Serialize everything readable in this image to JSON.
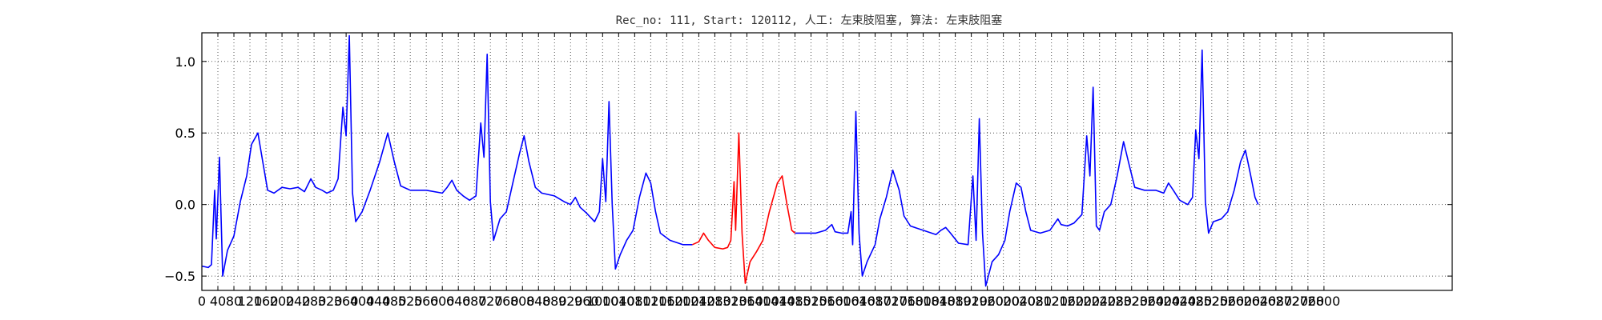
{
  "chart_data": {
    "type": "line",
    "title": "Rec_no: 111, Start: 120112, 人工: 左束肢阻塞, 算法: 左束肢阻塞",
    "xlabel": "",
    "ylabel": "",
    "xlim": [
      0,
      1560
    ],
    "ylim": [
      -0.6,
      1.2
    ],
    "grid": true,
    "ytick_values": [
      -0.5,
      0.0,
      0.5,
      1.0
    ],
    "ytick_labels": [
      "−0.5",
      "0.0",
      "0.5",
      "1.0"
    ],
    "xtick_values": [
      0,
      20,
      40,
      60,
      80,
      100,
      120,
      140,
      160,
      180,
      200,
      220,
      240,
      260,
      280,
      300,
      320,
      340,
      360,
      380,
      400,
      420,
      440,
      460,
      480,
      500,
      520,
      540,
      560,
      580,
      600,
      620,
      640,
      660,
      680,
      700,
      720,
      740,
      760,
      780,
      800,
      820,
      840,
      860,
      880,
      900,
      920,
      940,
      960,
      980,
      1000,
      1020,
      1040,
      1060,
      1080,
      1100,
      1120,
      1140,
      1160,
      1180,
      1200,
      1220,
      1240,
      1260,
      1280,
      1300,
      1320,
      1340,
      1360,
      1380,
      1400
    ],
    "xtick_labels": [
      "0",
      "40",
      "80",
      "120",
      "160",
      "200",
      "240",
      "280",
      "320",
      "360",
      "400",
      "440",
      "480",
      "520",
      "560",
      "600",
      "640",
      "680",
      "720",
      "760",
      "800",
      "840",
      "880",
      "920",
      "960",
      "1000",
      "1040",
      "1080",
      "1120",
      "1160",
      "1200",
      "1240",
      "1280",
      "1320",
      "1360",
      "1400",
      "1440",
      "1480",
      "1520",
      "1560",
      "1600",
      "1640",
      "1680",
      "1720",
      "1760",
      "1800",
      "1840",
      "1880",
      "1920",
      "1960",
      "2000",
      "2040",
      "2080",
      "2120",
      "2160",
      "2200",
      "2240",
      "2280",
      "2320",
      "2360",
      "2400",
      "2440",
      "2480",
      "2520",
      "2560",
      "2600",
      "2640",
      "2680",
      "2720",
      "2760",
      "2800"
    ],
    "series": [
      {
        "color": "#0000ff",
        "segments": [
          [
            [
              0,
              -0.43
            ],
            [
              8,
              -0.44
            ],
            [
              12,
              -0.42
            ],
            [
              16,
              0.1
            ],
            [
              18,
              -0.24
            ],
            [
              22,
              0.33
            ],
            [
              26,
              -0.5
            ],
            [
              32,
              -0.32
            ],
            [
              40,
              -0.22
            ],
            [
              48,
              0.02
            ],
            [
              56,
              0.2
            ],
            [
              62,
              0.42
            ],
            [
              70,
              0.5
            ],
            [
              76,
              0.3
            ],
            [
              82,
              0.1
            ],
            [
              90,
              0.08
            ],
            [
              100,
              0.12
            ],
            [
              110,
              0.11
            ],
            [
              120,
              0.12
            ],
            [
              128,
              0.09
            ],
            [
              136,
              0.18
            ],
            [
              142,
              0.12
            ],
            [
              150,
              0.1
            ],
            [
              156,
              0.08
            ],
            [
              164,
              0.1
            ],
            [
              170,
              0.18
            ],
            [
              176,
              0.68
            ],
            [
              180,
              0.48
            ],
            [
              184,
              1.18
            ],
            [
              188,
              0.08
            ],
            [
              192,
              -0.12
            ],
            [
              200,
              -0.05
            ],
            [
              210,
              0.1
            ],
            [
              222,
              0.3
            ],
            [
              232,
              0.5
            ],
            [
              240,
              0.3
            ],
            [
              248,
              0.13
            ],
            [
              260,
              0.1
            ],
            [
              280,
              0.1
            ],
            [
              300,
              0.08
            ],
            [
              306,
              0.12
            ],
            [
              312,
              0.17
            ],
            [
              318,
              0.1
            ],
            [
              326,
              0.06
            ],
            [
              334,
              0.03
            ],
            [
              342,
              0.06
            ],
            [
              348,
              0.57
            ],
            [
              352,
              0.33
            ],
            [
              356,
              1.05
            ],
            [
              360,
              0.02
            ],
            [
              364,
              -0.25
            ],
            [
              372,
              -0.1
            ],
            [
              380,
              -0.05
            ],
            [
              388,
              0.15
            ],
            [
              396,
              0.35
            ],
            [
              402,
              0.48
            ],
            [
              408,
              0.3
            ],
            [
              416,
              0.12
            ],
            [
              424,
              0.08
            ],
            [
              440,
              0.06
            ],
            [
              452,
              0.02
            ],
            [
              460,
              0.0
            ],
            [
              466,
              0.05
            ],
            [
              472,
              -0.02
            ],
            [
              480,
              -0.06
            ],
            [
              490,
              -0.12
            ],
            [
              496,
              -0.05
            ],
            [
              500,
              0.32
            ],
            [
              504,
              0.02
            ],
            [
              508,
              0.72
            ],
            [
              512,
              0.0
            ],
            [
              516,
              -0.45
            ],
            [
              522,
              -0.35
            ],
            [
              530,
              -0.25
            ],
            [
              538,
              -0.18
            ],
            [
              546,
              0.05
            ],
            [
              554,
              0.22
            ],
            [
              560,
              0.15
            ],
            [
              566,
              -0.05
            ],
            [
              572,
              -0.2
            ],
            [
              584,
              -0.25
            ],
            [
              600,
              -0.28
            ],
            [
              612,
              -0.28
            ]
          ],
          [
            [
              740,
              -0.2
            ],
            [
              752,
              -0.2
            ],
            [
              766,
              -0.2
            ],
            [
              778,
              -0.18
            ],
            [
              786,
              -0.14
            ],
            [
              790,
              -0.19
            ],
            [
              798,
              -0.2
            ],
            [
              806,
              -0.2
            ],
            [
              810,
              -0.05
            ],
            [
              812,
              -0.28
            ],
            [
              816,
              0.65
            ],
            [
              820,
              -0.2
            ],
            [
              824,
              -0.5
            ],
            [
              830,
              -0.4
            ],
            [
              840,
              -0.28
            ],
            [
              846,
              -0.1
            ],
            [
              854,
              0.05
            ],
            [
              862,
              0.24
            ],
            [
              870,
              0.1
            ],
            [
              876,
              -0.08
            ],
            [
              884,
              -0.15
            ],
            [
              900,
              -0.18
            ],
            [
              916,
              -0.21
            ],
            [
              922,
              -0.18
            ],
            [
              928,
              -0.16
            ],
            [
              934,
              -0.2
            ],
            [
              944,
              -0.27
            ],
            [
              956,
              -0.28
            ],
            [
              962,
              0.2
            ],
            [
              966,
              -0.25
            ],
            [
              970,
              0.6
            ],
            [
              974,
              -0.2
            ],
            [
              978,
              -0.57
            ],
            [
              986,
              -0.4
            ],
            [
              994,
              -0.35
            ],
            [
              1002,
              -0.25
            ],
            [
              1008,
              -0.05
            ],
            [
              1016,
              0.15
            ],
            [
              1022,
              0.12
            ],
            [
              1028,
              -0.05
            ],
            [
              1034,
              -0.18
            ],
            [
              1046,
              -0.2
            ],
            [
              1058,
              -0.18
            ],
            [
              1068,
              -0.1
            ],
            [
              1072,
              -0.14
            ],
            [
              1080,
              -0.15
            ],
            [
              1088,
              -0.13
            ],
            [
              1098,
              -0.07
            ],
            [
              1104,
              0.48
            ],
            [
              1108,
              0.2
            ],
            [
              1112,
              0.82
            ],
            [
              1116,
              -0.15
            ],
            [
              1120,
              -0.18
            ],
            [
              1126,
              -0.05
            ],
            [
              1134,
              0.0
            ],
            [
              1142,
              0.2
            ],
            [
              1150,
              0.44
            ],
            [
              1156,
              0.3
            ],
            [
              1164,
              0.12
            ],
            [
              1176,
              0.1
            ],
            [
              1190,
              0.1
            ],
            [
              1200,
              0.08
            ],
            [
              1206,
              0.15
            ],
            [
              1212,
              0.1
            ],
            [
              1220,
              0.03
            ],
            [
              1230,
              0.0
            ],
            [
              1236,
              0.05
            ],
            [
              1240,
              0.52
            ],
            [
              1244,
              0.32
            ],
            [
              1248,
              1.08
            ],
            [
              1252,
              0.02
            ],
            [
              1256,
              -0.2
            ],
            [
              1262,
              -0.12
            ],
            [
              1272,
              -0.1
            ],
            [
              1280,
              -0.05
            ],
            [
              1288,
              0.1
            ],
            [
              1296,
              0.3
            ],
            [
              1302,
              0.38
            ],
            [
              1308,
              0.22
            ],
            [
              1314,
              0.05
            ],
            [
              1318,
              0.0
            ]
          ]
        ]
      },
      {
        "color": "#ff0000",
        "segments": [
          [
            [
              612,
              -0.28
            ],
            [
              620,
              -0.26
            ],
            [
              626,
              -0.2
            ],
            [
              632,
              -0.25
            ],
            [
              640,
              -0.3
            ],
            [
              650,
              -0.31
            ],
            [
              656,
              -0.3
            ],
            [
              660,
              -0.25
            ],
            [
              664,
              0.16
            ],
            [
              666,
              -0.18
            ],
            [
              670,
              0.5
            ],
            [
              674,
              -0.2
            ],
            [
              678,
              -0.55
            ],
            [
              684,
              -0.4
            ],
            [
              692,
              -0.33
            ],
            [
              700,
              -0.25
            ],
            [
              708,
              -0.05
            ],
            [
              718,
              0.15
            ],
            [
              724,
              0.2
            ],
            [
              730,
              0.0
            ],
            [
              736,
              -0.18
            ],
            [
              740,
              -0.2
            ]
          ]
        ]
      }
    ]
  }
}
